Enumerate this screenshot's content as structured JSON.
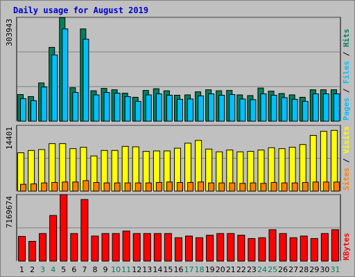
{
  "title": "Daily usage for August 2019",
  "colors": {
    "hits": "#00805c",
    "files": "#00c0ff",
    "sites": "#ff8000",
    "visits": "#ffff00",
    "kbytes": "#ff0000",
    "weekday": "#000000",
    "weekend": "#00805c",
    "pages": "#00c0ff",
    "separator": "#000000"
  },
  "panels": {
    "top": {
      "max_label": "303943",
      "legend": [
        {
          "text": "Pages",
          "color_key": "pages"
        },
        {
          "text": " / ",
          "color_key": "separator"
        },
        {
          "text": "Files",
          "color_key": "files"
        },
        {
          "text": " / ",
          "color_key": "separator"
        },
        {
          "text": "Hits",
          "color_key": "hits"
        }
      ]
    },
    "middle": {
      "max_label": "14401",
      "legend": [
        {
          "text": "Sites",
          "color_key": "sites"
        },
        {
          "text": " / ",
          "color_key": "separator"
        },
        {
          "text": "Visits",
          "color_key": "visits"
        }
      ]
    },
    "bottom": {
      "max_label": "7169674",
      "legend": [
        {
          "text": "KBytes",
          "color_key": "kbytes"
        }
      ]
    }
  },
  "chart_data": {
    "type": "bar",
    "categories": [
      "1",
      "2",
      "3",
      "4",
      "5",
      "6",
      "7",
      "8",
      "9",
      "10",
      "11",
      "12",
      "13",
      "14",
      "15",
      "16",
      "17",
      "18",
      "19",
      "20",
      "21",
      "22",
      "23",
      "24",
      "25",
      "26",
      "27",
      "28",
      "29",
      "30",
      "31"
    ],
    "weekend_days": [
      "3",
      "4",
      "10",
      "11",
      "17",
      "18",
      "24",
      "25",
      "31"
    ],
    "panels": [
      {
        "id": "top",
        "ymax": 303943,
        "series": [
          {
            "name": "Hits",
            "color_key": "hits",
            "values": [
              78000,
              72000,
              112000,
              216000,
              303000,
              98000,
              270000,
              89000,
              96000,
              92000,
              82000,
              70000,
              90000,
              95000,
              89000,
              76000,
              77000,
              86000,
              92000,
              89000,
              90000,
              77000,
              75000,
              97000,
              88000,
              81000,
              77000,
              70000,
              92000,
              92000,
              92000
            ]
          },
          {
            "name": "Files",
            "color_key": "files",
            "values": [
              66000,
              60000,
              100000,
              194000,
              270000,
              84000,
              240000,
              77000,
              84000,
              82000,
              72000,
              58000,
              77000,
              80000,
              76000,
              64000,
              65000,
              74000,
              80000,
              76000,
              78000,
              65000,
              63000,
              80000,
              76000,
              69000,
              64000,
              58000,
              80000,
              80000,
              80000
            ]
          },
          {
            "name": "Pages",
            "color_key": "pages",
            "values": [
              0,
              0,
              0,
              0,
              0,
              0,
              0,
              0,
              0,
              0,
              0,
              0,
              0,
              0,
              0,
              0,
              0,
              0,
              0,
              0,
              0,
              0,
              0,
              0,
              0,
              0,
              0,
              0,
              0,
              0,
              0
            ]
          }
        ]
      },
      {
        "id": "middle",
        "ymax": 14401,
        "series": [
          {
            "name": "Visits",
            "color_key": "visits",
            "values": [
              8400,
              8900,
              9100,
              10400,
              10400,
              9300,
              9600,
              7700,
              8900,
              8900,
              9800,
              9700,
              8700,
              8800,
              8800,
              9400,
              10500,
              11100,
              9200,
              8600,
              9000,
              8600,
              8700,
              9000,
              9500,
              9300,
              9600,
              10200,
              12200,
              13100,
              13300
            ]
          },
          {
            "name": "Sites",
            "color_key": "sites",
            "values": [
              1500,
              1600,
              1800,
              1900,
              2000,
              2000,
              2300,
              1900,
              1800,
              1800,
              1800,
              1800,
              1800,
              1900,
              2000,
              1900,
              1900,
              2000,
              1800,
              1800,
              1800,
              1700,
              1800,
              1700,
              1900,
              1800,
              1800,
              1900,
              2000,
              2000,
              2000
            ]
          }
        ]
      },
      {
        "id": "bottom",
        "ymax": 7169674,
        "series": [
          {
            "name": "KBytes",
            "color_key": "kbytes",
            "values": [
              2660000,
              2130000,
              2970000,
              4920000,
              7169674,
              2970000,
              6640000,
              2700000,
              2970000,
              2970000,
              3240000,
              2970000,
              2970000,
              2970000,
              2970000,
              2520000,
              2700000,
              2520000,
              2790000,
              2970000,
              2970000,
              2790000,
              2430000,
              2520000,
              3380000,
              2970000,
              2520000,
              2700000,
              2430000,
              2970000,
              3380000
            ]
          }
        ]
      }
    ]
  }
}
